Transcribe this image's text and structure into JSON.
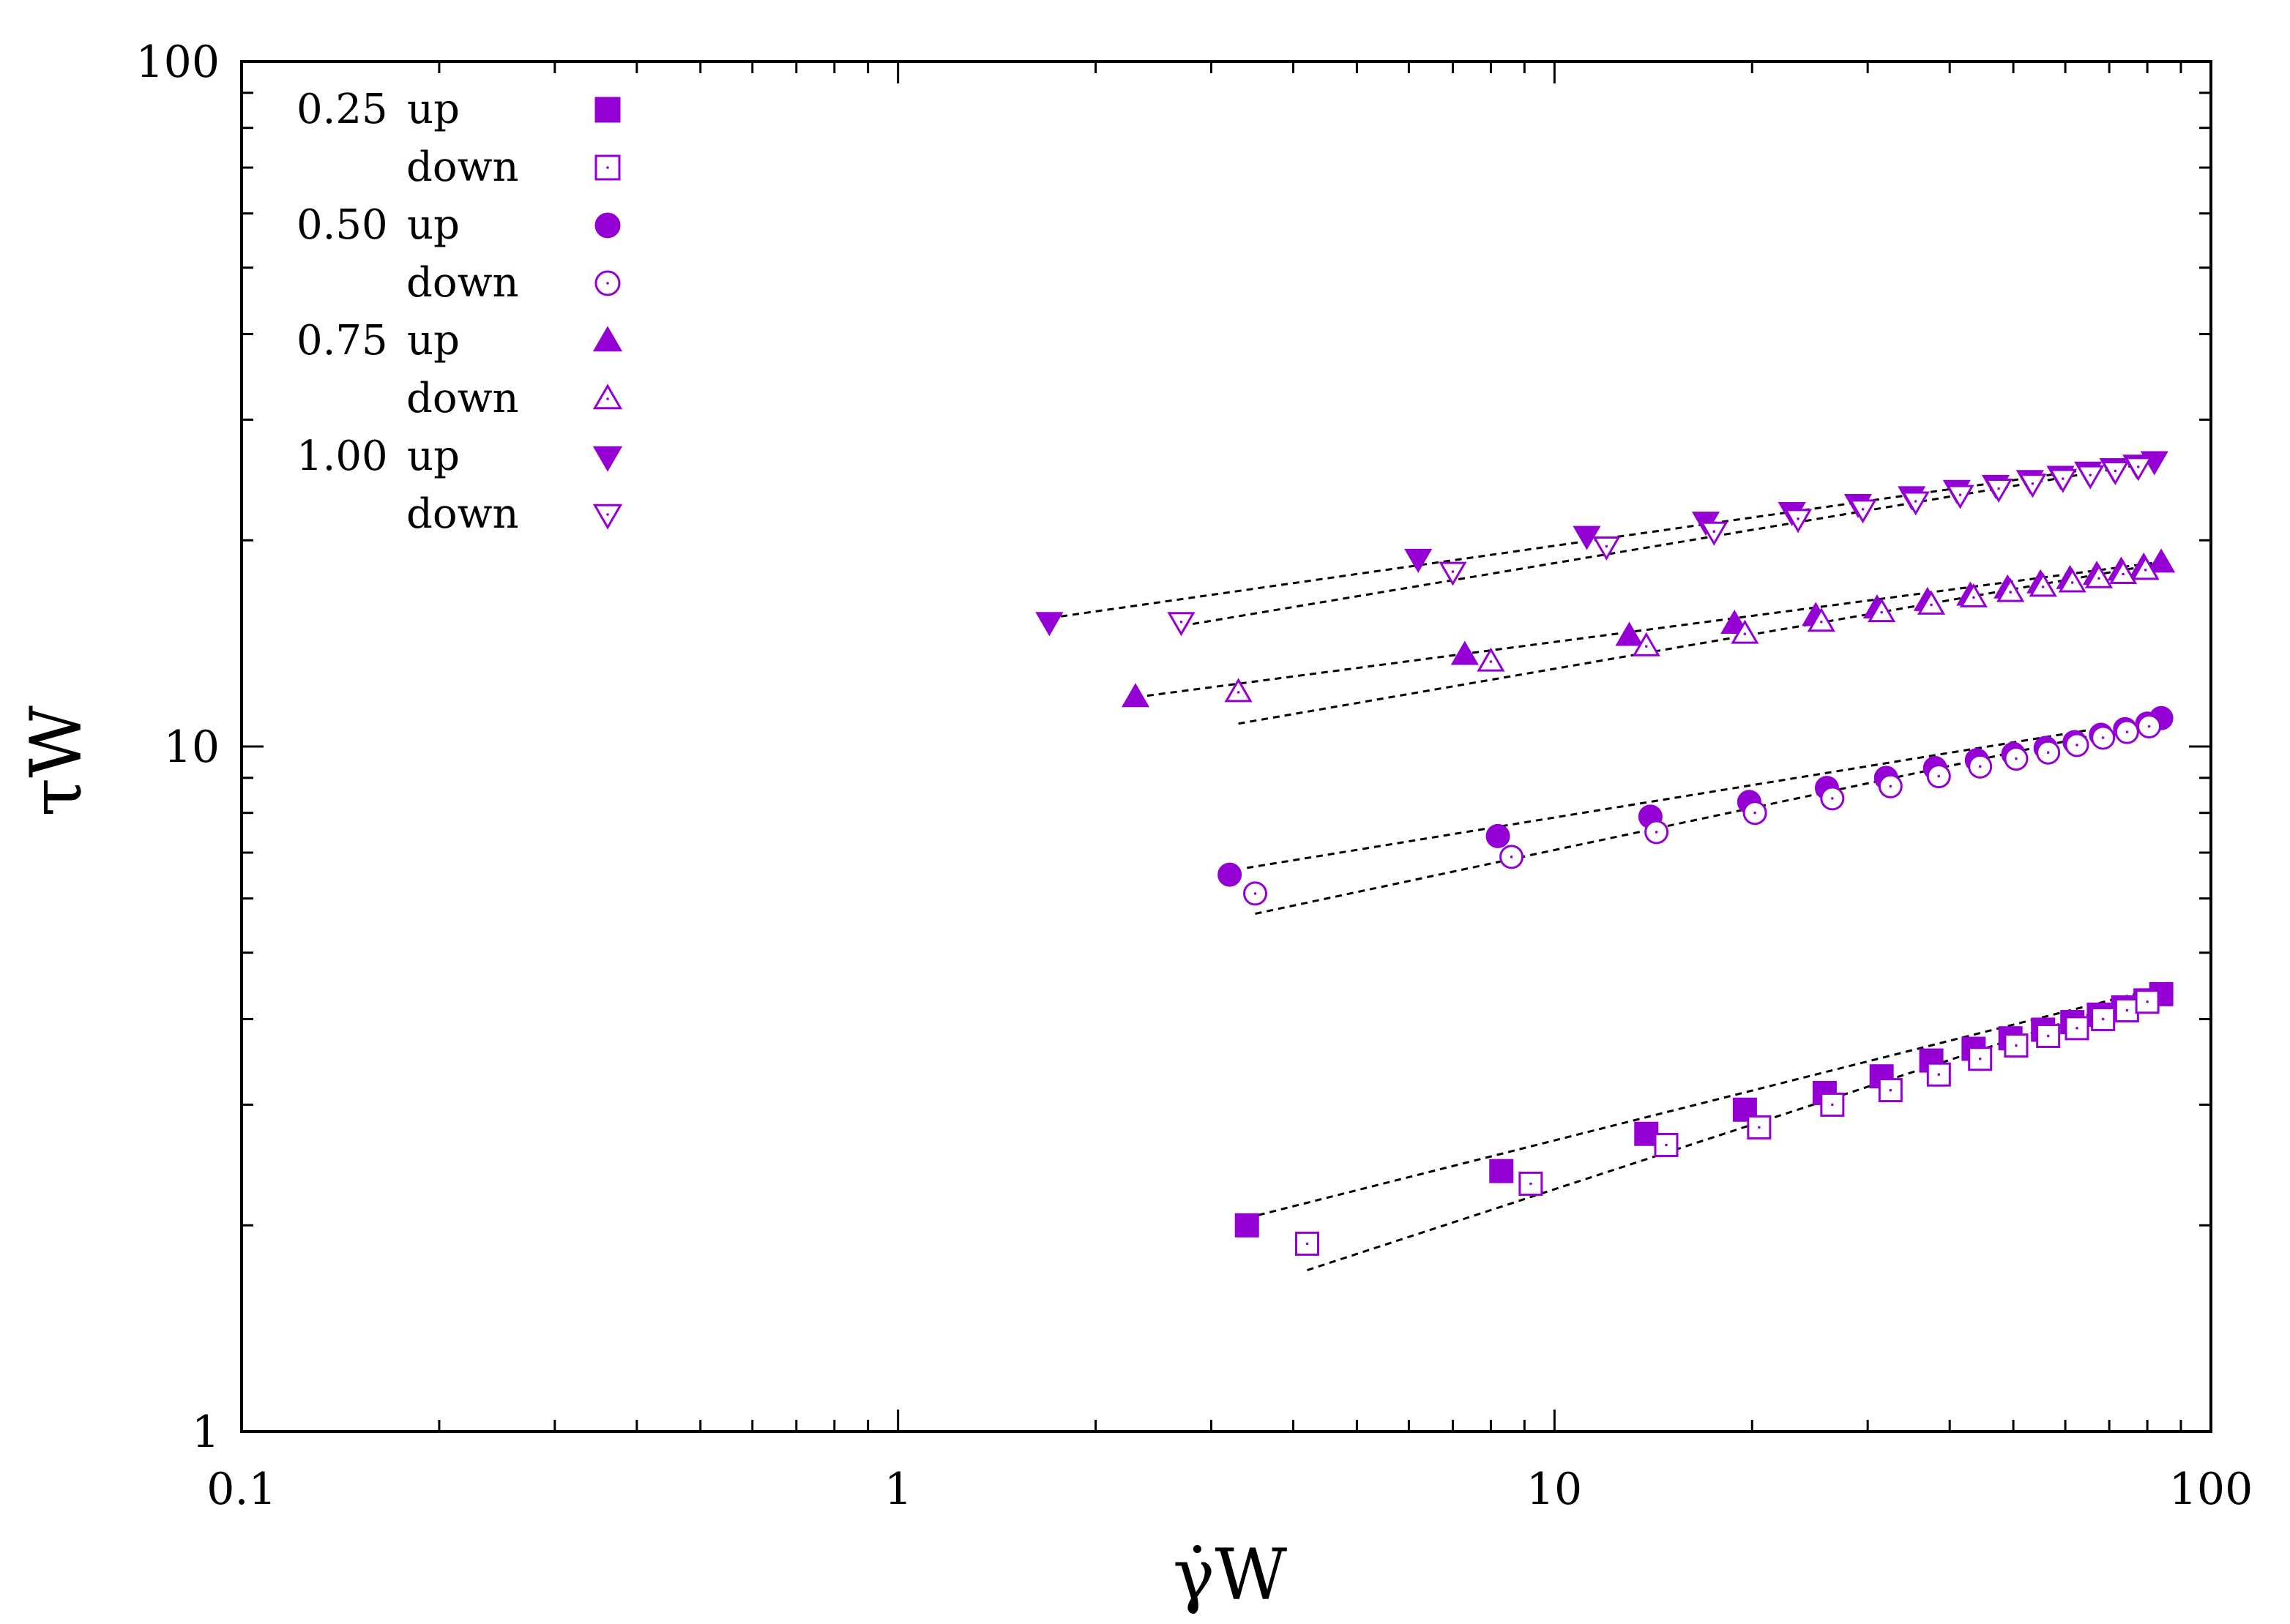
{
  "chart_data": {
    "type": "scatter",
    "title": "",
    "xlabel": "γ̇W",
    "ylabel": "τW",
    "xscale": "log",
    "yscale": "log",
    "xlim": [
      0.1,
      100
    ],
    "ylim": [
      1,
      100
    ],
    "xticks": [
      "0.1",
      "1",
      "10",
      "100"
    ],
    "yticks": [
      "1",
      "10",
      "100"
    ],
    "legend_position": "top-left",
    "marker_color": "#9400D3",
    "fit_color": "#000000",
    "series": [
      {
        "name": "0.25 up",
        "group": "0.25",
        "direction": "up",
        "marker": "square",
        "filled": true,
        "x": [
          3.4,
          8.3,
          13.8,
          19.5,
          25.8,
          31.5,
          37.5,
          43.5,
          49.5,
          55.5,
          61.5,
          67.5,
          73.5,
          79.5,
          84.0
        ],
        "y": [
          2.0,
          2.4,
          2.72,
          2.95,
          3.12,
          3.3,
          3.48,
          3.62,
          3.75,
          3.86,
          3.96,
          4.06,
          4.16,
          4.26,
          4.35
        ],
        "fit": {
          "x": [
            3.4,
            84.0
          ],
          "y": [
            2.05,
            4.45
          ]
        }
      },
      {
        "name": "down",
        "group": "0.25",
        "direction": "down",
        "marker": "square",
        "filled": false,
        "x": [
          4.2,
          9.2,
          14.8,
          20.5,
          26.5,
          32.5,
          38.5,
          44.5,
          50.5,
          56.5,
          62.5,
          68.5,
          74.5,
          80.0
        ],
        "y": [
          1.88,
          2.3,
          2.62,
          2.78,
          3.0,
          3.15,
          3.32,
          3.5,
          3.66,
          3.78,
          3.88,
          4.0,
          4.12,
          4.24
        ],
        "fit": {
          "x": [
            4.2,
            84.0
          ],
          "y": [
            1.72,
            4.4
          ]
        }
      },
      {
        "name": "0.50 up",
        "group": "0.50",
        "direction": "up",
        "marker": "circle",
        "filled": true,
        "x": [
          3.2,
          8.2,
          14.0,
          19.8,
          26.0,
          32.0,
          38.0,
          44.0,
          50.0,
          56.0,
          62.0,
          68.0,
          74.0,
          80.0,
          84.0
        ],
        "y": [
          6.5,
          7.4,
          7.9,
          8.3,
          8.7,
          9.0,
          9.3,
          9.55,
          9.75,
          9.95,
          10.15,
          10.4,
          10.6,
          10.8,
          11.0
        ],
        "fit": {
          "x": [
            3.4,
            84.0
          ],
          "y": [
            6.65,
            11.0
          ]
        }
      },
      {
        "name": "down",
        "group": "0.50",
        "direction": "down",
        "marker": "circle",
        "filled": false,
        "x": [
          3.5,
          8.6,
          14.3,
          20.2,
          26.5,
          32.5,
          38.5,
          44.5,
          50.5,
          56.5,
          62.5,
          68.5,
          74.5,
          80.5
        ],
        "y": [
          6.1,
          6.9,
          7.5,
          8.0,
          8.4,
          8.75,
          9.05,
          9.35,
          9.6,
          9.8,
          10.05,
          10.3,
          10.5,
          10.7
        ],
        "fit": {
          "x": [
            3.5,
            84.0
          ],
          "y": [
            5.7,
            10.9
          ]
        }
      },
      {
        "name": "0.75 up",
        "group": "0.75",
        "direction": "up",
        "marker": "triangle-up",
        "filled": true,
        "x": [
          2.3,
          7.3,
          13.0,
          18.8,
          25.0,
          31.0,
          37.0,
          43.0,
          49.0,
          55.0,
          61.0,
          67.0,
          73.0,
          79.0,
          84.0
        ],
        "y": [
          11.8,
          13.6,
          14.5,
          15.1,
          15.5,
          15.9,
          16.3,
          16.6,
          17.0,
          17.3,
          17.55,
          17.8,
          18.05,
          18.3,
          18.55
        ],
        "fit": {
          "x": [
            2.3,
            84.0
          ],
          "y": [
            11.8,
            18.6
          ]
        }
      },
      {
        "name": "down",
        "group": "0.75",
        "direction": "down",
        "marker": "triangle-up",
        "filled": false,
        "x": [
          3.3,
          8.0,
          13.8,
          19.5,
          25.5,
          31.5,
          37.5,
          43.5,
          49.5,
          55.5,
          61.5,
          67.5,
          73.5,
          79.5
        ],
        "y": [
          12.0,
          13.3,
          14.0,
          14.6,
          15.2,
          15.7,
          16.1,
          16.5,
          16.8,
          17.1,
          17.35,
          17.6,
          17.85,
          18.1
        ],
        "fit": {
          "x": [
            3.3,
            84.0
          ],
          "y": [
            10.8,
            18.5
          ]
        }
      },
      {
        "name": "1.00 up",
        "group": "1.00",
        "direction": "up",
        "marker": "triangle-down",
        "filled": true,
        "x": [
          1.7,
          6.2,
          11.2,
          17.0,
          23.0,
          29.0,
          35.0,
          41.0,
          47.0,
          53.0,
          59.0,
          65.0,
          71.0,
          77.0,
          82.0
        ],
        "y": [
          15.2,
          18.8,
          20.3,
          21.3,
          22.0,
          22.6,
          23.2,
          23.7,
          24.1,
          24.5,
          24.85,
          25.2,
          25.5,
          25.8,
          26.1
        ],
        "fit": {
          "x": [
            1.7,
            82.0
          ],
          "y": [
            15.4,
            26.2
          ]
        }
      },
      {
        "name": "down",
        "group": "1.00",
        "direction": "down",
        "marker": "triangle-down",
        "filled": false,
        "x": [
          2.7,
          7.0,
          12.0,
          17.5,
          23.5,
          29.5,
          35.5,
          41.5,
          47.5,
          53.5,
          59.5,
          65.5,
          71.5,
          77.5
        ],
        "y": [
          15.2,
          18.0,
          19.6,
          20.6,
          21.5,
          22.2,
          22.8,
          23.3,
          23.8,
          24.2,
          24.6,
          24.9,
          25.25,
          25.6
        ],
        "fit": {
          "x": [
            2.7,
            82.0
          ],
          "y": [
            15.0,
            26.0
          ]
        }
      }
    ],
    "legend": [
      {
        "prefix": "0.25",
        "label": "up"
      },
      {
        "prefix": "",
        "label": "down"
      },
      {
        "prefix": "0.50",
        "label": "up"
      },
      {
        "prefix": "",
        "label": "down"
      },
      {
        "prefix": "0.75",
        "label": "up"
      },
      {
        "prefix": "",
        "label": "down"
      },
      {
        "prefix": "1.00",
        "label": "up"
      },
      {
        "prefix": "",
        "label": "down"
      }
    ]
  }
}
